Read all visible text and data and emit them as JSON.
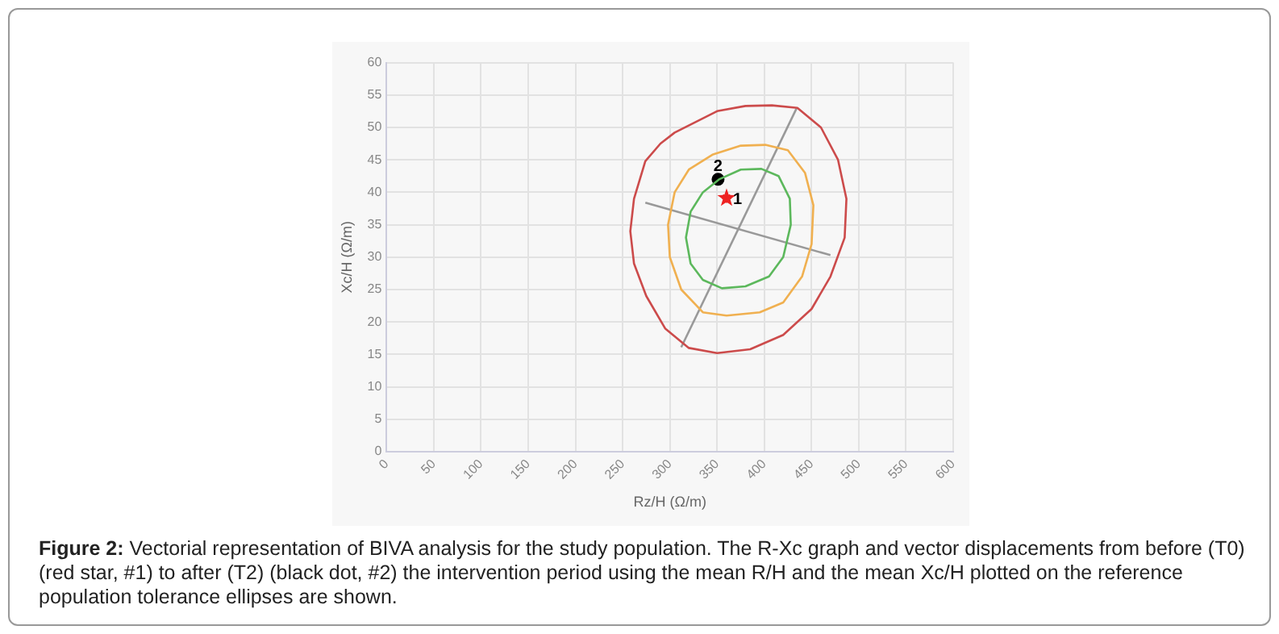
{
  "chart_data": {
    "type": "line",
    "xlabel": "Rz/H (Ω/m)",
    "ylabel": "Xc/H (Ω/m)",
    "xlim": [
      0,
      600
    ],
    "xticks": [
      0,
      50,
      100,
      150,
      200,
      250,
      300,
      350,
      400,
      450,
      500,
      550,
      600
    ],
    "ylim": [
      0,
      60
    ],
    "yticks": [
      0,
      5,
      10,
      15,
      20,
      25,
      30,
      35,
      40,
      45,
      50,
      55,
      60
    ],
    "grid": true,
    "line_style": "solid",
    "series": [
      {
        "color": "#999999",
        "x": [
          312,
          434
        ],
        "values": [
          16.1,
          52.9
        ]
      },
      {
        "color": "#999999",
        "x": [
          274,
          470
        ],
        "values": [
          38.4,
          30.3
        ]
      },
      {
        "type": "scatter",
        "marker": "star",
        "color": "#ee2222",
        "x": [
          360
        ],
        "values": [
          39.1
        ]
      },
      {
        "type": "scatter",
        "marker": "circle",
        "color": "#000000",
        "x": [
          351
        ],
        "values": [
          42.0
        ]
      }
    ],
    "annotations": [
      {
        "text": "1",
        "x": 360,
        "y": 39.1
      },
      {
        "text": "2",
        "x": 351,
        "y": 42.0
      },
      "Figure 2: Vectorial representation of BIVA analysis for the study population. The R-Xc graph and vector displacements from before (T0) (red star, #1) to after (T2) (black dot, #2) the intervention period using the mean R/H and the mean Xc/H plotted on the reference population tolerance ellipses are shown."
    ]
  }
}
